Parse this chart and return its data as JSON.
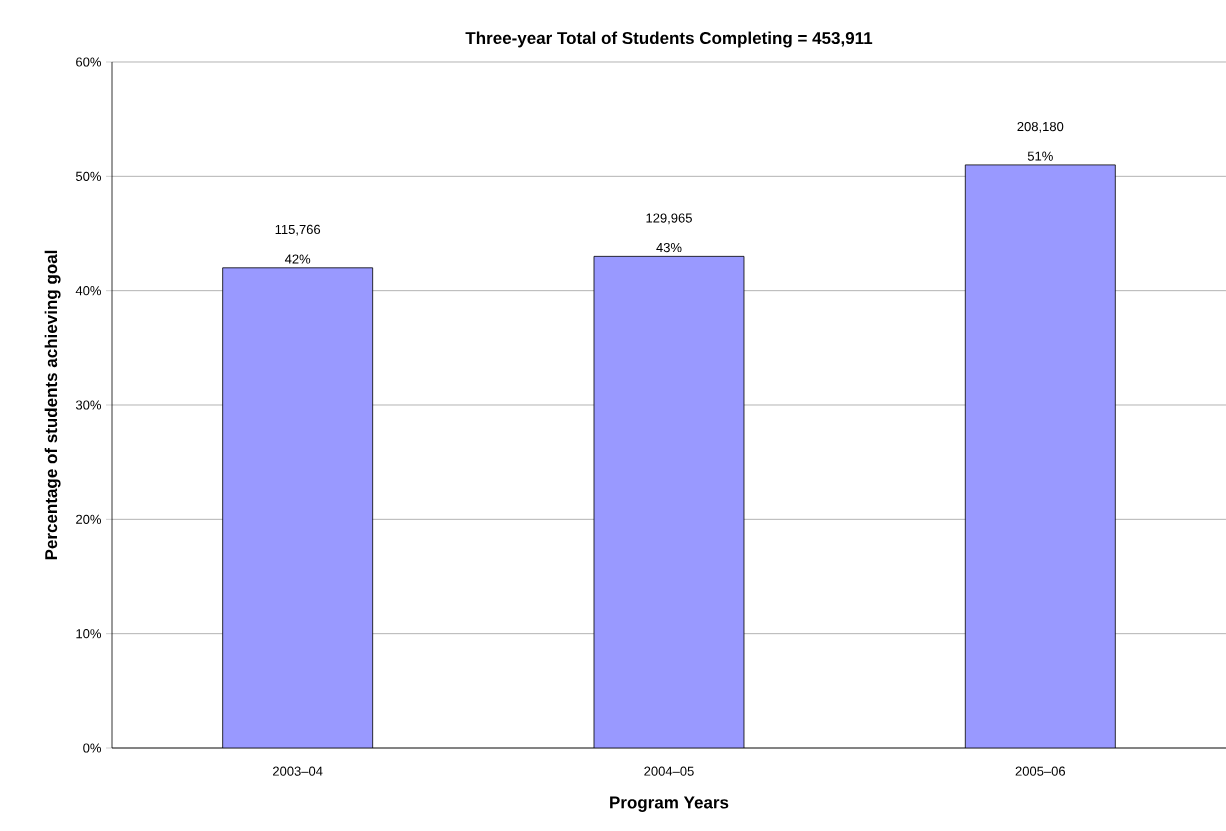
{
  "chart_data": {
    "type": "bar",
    "title": "Three-year Total of Students Completing =  453,911",
    "xlabel": "Program Years",
    "ylabel": "Percentage of students achieving goal",
    "categories": [
      "2003–04",
      "2004–05",
      "2005–06"
    ],
    "values": [
      42,
      43,
      51
    ],
    "color": "#9999ff",
    "value_labels": [
      "42%",
      "43%",
      "51%"
    ],
    "annotations": [
      {
        "text": "115,766",
        "x": "2003–04",
        "y": 42
      },
      {
        "text": "129,965",
        "x": "2004–05",
        "y": 43
      },
      {
        "text": "208,180",
        "x": "2005–06",
        "y": 51
      }
    ],
    "ylim": [
      0,
      60
    ],
    "yticks": [
      {
        "value": 0,
        "label": "0%"
      },
      {
        "value": 10,
        "label": "10%"
      },
      {
        "value": 20,
        "label": "20%"
      },
      {
        "value": 30,
        "label": "30%"
      },
      {
        "value": 40,
        "label": "40%"
      },
      {
        "value": 50,
        "label": "50%"
      },
      {
        "value": 60,
        "label": "60%"
      }
    ],
    "grid": "y"
  }
}
